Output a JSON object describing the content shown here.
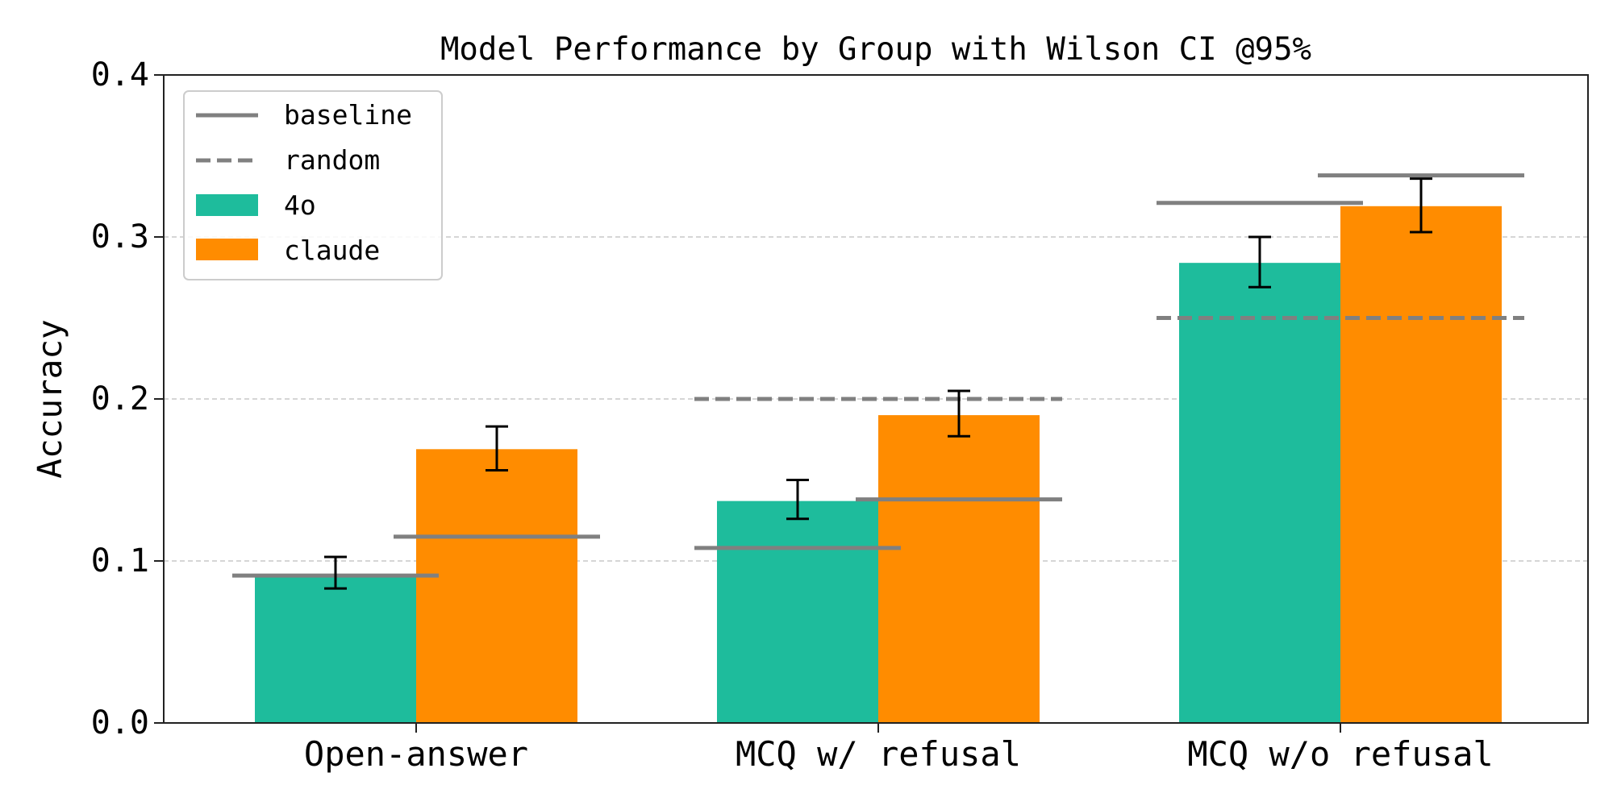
{
  "chart_data": {
    "type": "bar",
    "title": "Model Performance by Group with Wilson CI @95%",
    "xlabel": "",
    "ylabel": "Accuracy",
    "ylim": [
      0.0,
      0.4
    ],
    "yticks": [
      "0.0",
      "0.1",
      "0.2",
      "0.3",
      "0.4"
    ],
    "grid": "y-dashed",
    "legend_position": "top-left",
    "categories": [
      "Open-answer",
      "MCQ w/ refusal",
      "MCQ w/o refusal"
    ],
    "series": [
      {
        "name": "4o",
        "color": "#1ebc9c",
        "values": [
          0.091,
          0.137,
          0.284
        ],
        "ci_low": [
          0.083,
          0.126,
          0.269
        ],
        "ci_high": [
          0.1025,
          0.15,
          0.3
        ],
        "baseline": [
          0.091,
          0.108,
          0.321
        ]
      },
      {
        "name": "claude",
        "color": "#ff8c00",
        "values": [
          0.169,
          0.19,
          0.319
        ],
        "ci_low": [
          0.156,
          0.177,
          0.303
        ],
        "ci_high": [
          0.183,
          0.205,
          0.336
        ],
        "baseline": [
          0.115,
          0.138,
          0.338
        ]
      }
    ],
    "random": [
      null,
      0.2,
      0.25
    ],
    "reference_line_color": "#808080",
    "legend": [
      {
        "label": "baseline",
        "style": "solid-line"
      },
      {
        "label": "random",
        "style": "dashed-line"
      },
      {
        "label": "4o",
        "style": "patch",
        "color": "#1ebc9c"
      },
      {
        "label": "claude",
        "style": "patch",
        "color": "#ff8c00"
      }
    ]
  }
}
